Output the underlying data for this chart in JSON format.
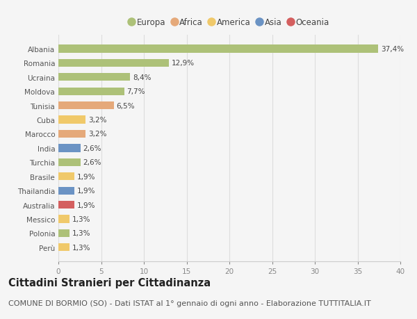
{
  "title": "Cittadini Stranieri per Cittadinanza",
  "subtitle": "COMUNE DI BORMIO (SO) - Dati ISTAT al 1° gennaio di ogni anno - Elaborazione TUTTITALIA.IT",
  "categories": [
    "Albania",
    "Romania",
    "Ucraina",
    "Moldova",
    "Tunisia",
    "Cuba",
    "Marocco",
    "India",
    "Turchia",
    "Brasile",
    "Thailandia",
    "Australia",
    "Messico",
    "Polonia",
    "Perù"
  ],
  "values": [
    37.4,
    12.9,
    8.4,
    7.7,
    6.5,
    3.2,
    3.2,
    2.6,
    2.6,
    1.9,
    1.9,
    1.9,
    1.3,
    1.3,
    1.3
  ],
  "labels": [
    "37,4%",
    "12,9%",
    "8,4%",
    "7,7%",
    "6,5%",
    "3,2%",
    "3,2%",
    "2,6%",
    "2,6%",
    "1,9%",
    "1,9%",
    "1,9%",
    "1,3%",
    "1,3%",
    "1,3%"
  ],
  "colors": [
    "#adc178",
    "#adc178",
    "#adc178",
    "#adc178",
    "#e5a97a",
    "#f0c96a",
    "#e5a97a",
    "#6b93c4",
    "#adc178",
    "#f0c96a",
    "#6b93c4",
    "#d45f5f",
    "#f0c96a",
    "#adc178",
    "#f0c96a"
  ],
  "continents": [
    "Europa",
    "Africa",
    "America",
    "Asia",
    "Oceania"
  ],
  "legend_colors": [
    "#adc178",
    "#e5a97a",
    "#f0c96a",
    "#6b93c4",
    "#d45f5f"
  ],
  "background_color": "#f5f5f5",
  "xlim": [
    0,
    40
  ],
  "xticks": [
    0,
    5,
    10,
    15,
    20,
    25,
    30,
    35,
    40
  ],
  "grid_color": "#dddddd",
  "title_fontsize": 10.5,
  "subtitle_fontsize": 8,
  "label_fontsize": 7.5,
  "tick_fontsize": 7.5,
  "legend_fontsize": 8.5
}
